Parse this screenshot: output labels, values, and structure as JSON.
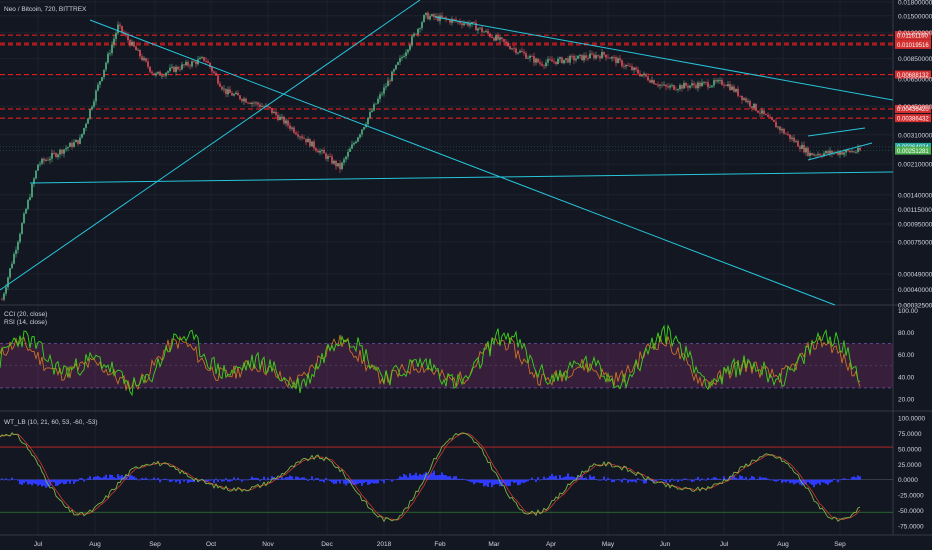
{
  "header": {
    "title": "Neo / Bitcoin, 720, BITTREX"
  },
  "indicators": {
    "cci_label": "CCI (20, close)",
    "rsi_label": "RSI (14, close)",
    "wt_label": "WT_LB (10, 21, 60, 53, -60, -53)"
  },
  "colors": {
    "background": "#131722",
    "grid": "#1e222d",
    "separator": "#363a45",
    "bull": "#53b987",
    "bear": "#eb4d5c",
    "trendline": "#26c6da",
    "resistance": "#ff1e1e",
    "cci": "#3ad418",
    "rsi": "#d87a1f",
    "rsi_band": "#7a2d6e",
    "wt": "#2e3bff",
    "wt_overbought": "#c62828",
    "wt_oversold": "#2e7d32"
  },
  "price_axis": {
    "labels": [
      "0.01800000",
      "0.01500000",
      "0.01200000",
      "0.00850000",
      "0.00650000",
      "0.00450000",
      "0.00310000",
      "0.00210000",
      "0.00140000",
      "0.00115000",
      "0.00095000",
      "0.00075000",
      "0.00049000",
      "0.00040000",
      "0.00032500"
    ],
    "ymin": 0.000325,
    "ymax": 0.018,
    "scale": "log"
  },
  "price_tags": [
    {
      "text": "0.01161160",
      "kind": "resistance"
    },
    {
      "text": "0.01043183",
      "kind": "resistance"
    },
    {
      "text": "0.01019516",
      "kind": "resistance"
    },
    {
      "text": "0.00688132",
      "kind": "resistance"
    },
    {
      "text": "0.00436420",
      "kind": "resistance"
    },
    {
      "text": "0.00386432",
      "kind": "resistance"
    },
    {
      "text": "0.00264024",
      "kind": "current"
    },
    {
      "text": "0.00251281",
      "kind": "current"
    }
  ],
  "cci_axis": {
    "labels": [
      "100.00",
      "80.00",
      "60.00",
      "40.00",
      "20.00"
    ]
  },
  "wt_axis": {
    "labels": [
      "100.0000",
      "75.0000",
      "50.0000",
      "25.0000",
      "0.0000",
      "-25.0000",
      "-50.0000",
      "-75.0000"
    ]
  },
  "time_axis": {
    "labels": [
      "Jul",
      "Aug",
      "Sep",
      "Oct",
      "Nov",
      "Dec",
      "2018",
      "Feb",
      "Mar",
      "Apr",
      "May",
      "Jun",
      "Jul",
      "Aug",
      "Sep"
    ]
  },
  "chart_data": [
    {
      "type": "candlestick",
      "title": "Neo / Bitcoin, 720, BITTREX",
      "scale": "log",
      "ylim": [
        0.000325,
        0.018
      ],
      "key_points": [
        {
          "date": "Jun 2017",
          "close": 0.00035
        },
        {
          "date": "Jul 2017",
          "close": 0.0021
        },
        {
          "date": "early Aug 2017",
          "close": 0.0029
        },
        {
          "date": "mid Aug 2017",
          "close": 0.013
        },
        {
          "date": "Sep 2017",
          "close": 0.0068
        },
        {
          "date": "late Sep 2017",
          "close": 0.0085
        },
        {
          "date": "Oct 2017",
          "close": 0.0055
        },
        {
          "date": "Nov 2017",
          "close": 0.0044
        },
        {
          "date": "Dec 2017",
          "close": 0.002
        },
        {
          "date": "Jan 2018",
          "close": 0.015
        },
        {
          "date": "Feb 2018",
          "close": 0.0135
        },
        {
          "date": "Mar 2018",
          "close": 0.008
        },
        {
          "date": "May 2018",
          "close": 0.009
        },
        {
          "date": "Jun 2018",
          "close": 0.0058
        },
        {
          "date": "Jul 2018",
          "close": 0.0062
        },
        {
          "date": "Aug 2018",
          "close": 0.0024
        },
        {
          "date": "Sep 2018",
          "close": 0.0025
        }
      ],
      "horizontal_levels": [
        0.0116116,
        0.01043183,
        0.01019516,
        0.00688132,
        0.0043642,
        0.00386432
      ],
      "grid": true
    },
    {
      "type": "line",
      "title": "CCI (20, close) / RSI (14, close)",
      "ylim": [
        10,
        105
      ],
      "band": [
        30,
        70
      ],
      "series": [
        {
          "name": "CCI (20, close)",
          "note": "oscillates roughly 20–95"
        },
        {
          "name": "RSI (14, close)",
          "note": "oscillates roughly 20–90"
        }
      ]
    },
    {
      "type": "line",
      "title": "WT_LB (10, 21, 60, 53, -60, -53)",
      "ylim": [
        -90,
        110
      ],
      "levels": [
        53,
        -53
      ],
      "series": [
        {
          "name": "WT_LB",
          "note": "oscillates roughly -85 to 95 with blue histogram near 0"
        }
      ]
    }
  ]
}
